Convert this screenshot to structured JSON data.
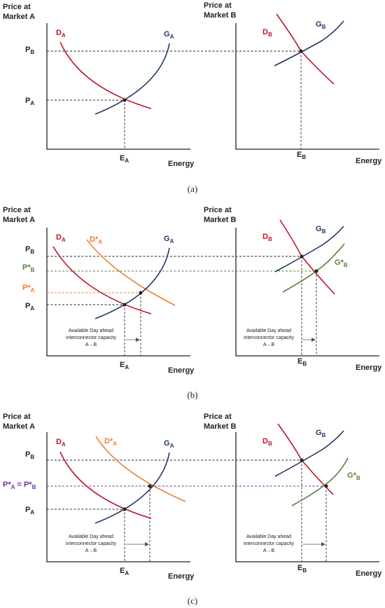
{
  "colors": {
    "demand": "#c0142b",
    "supply": "#1f3864",
    "shifted_demand": "#ed7d31",
    "shifted_supply": "#548235",
    "equal_price": "#7030a0",
    "ink": "#222222"
  },
  "labels": {
    "price_a_line1": "Price at",
    "price_a_line2": "Market A",
    "price_b_line1": "Price at",
    "price_b_line2": "Market B",
    "energy": "Energy",
    "d": "D",
    "g": "G",
    "p": "P",
    "e": "E",
    "star": "*",
    "sub_a": "A",
    "sub_b": "B",
    "equals": " = ",
    "capacity_line1": "Available Day ahead",
    "capacity_line2": "interconnector capacity",
    "capacity_line3": "A→B"
  },
  "panels": [
    {
      "caption": "(a)"
    },
    {
      "caption": "(b)"
    },
    {
      "caption": "(c)"
    }
  ]
}
